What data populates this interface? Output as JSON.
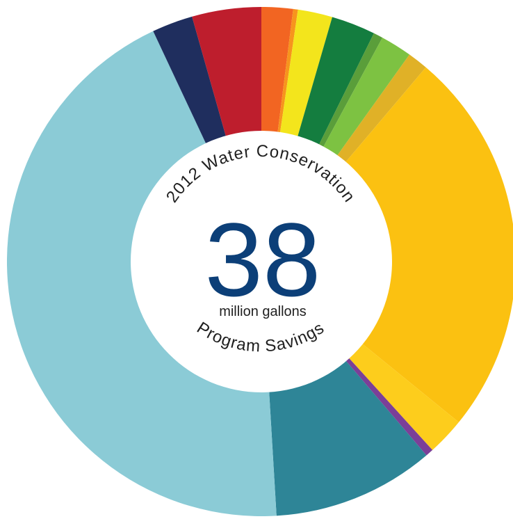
{
  "chart_data": {
    "type": "pie",
    "donut": true,
    "title_top": "2012 Water Conservation",
    "title_bottom": "Program Savings",
    "center_value": "38",
    "center_unit": "million gallons",
    "segments": [
      {
        "value": 2.0,
        "color": "#f26522"
      },
      {
        "value": 0.3,
        "color": "#f7941d"
      },
      {
        "value": 2.2,
        "color": "#f3e51c"
      },
      {
        "value": 2.8,
        "color": "#147d3f"
      },
      {
        "value": 0.6,
        "color": "#5a9e3a"
      },
      {
        "value": 2.0,
        "color": "#7dc242"
      },
      {
        "value": 1.3,
        "color": "#e0b127"
      },
      {
        "value": 24.7,
        "color": "#fbc111"
      },
      {
        "value": 2.4,
        "color": "#fdcd1c"
      },
      {
        "value": 0.5,
        "color": "#7b3f98"
      },
      {
        "value": 10.3,
        "color": "#2e8597"
      },
      {
        "value": 44.0,
        "color": "#8bcbd6"
      },
      {
        "value": 2.6,
        "color": "#1f2e5e"
      },
      {
        "value": 4.4,
        "color": "#be1e2d"
      }
    ]
  }
}
